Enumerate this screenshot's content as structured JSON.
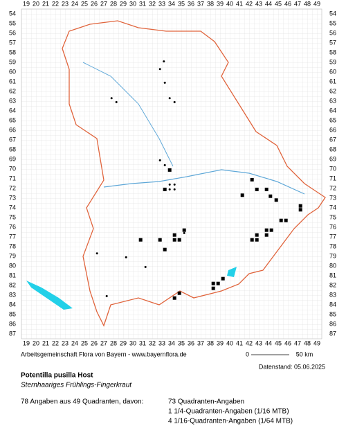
{
  "map": {
    "columns": [
      19,
      20,
      21,
      22,
      23,
      24,
      25,
      26,
      27,
      28,
      29,
      30,
      31,
      32,
      33,
      34,
      35,
      36,
      37,
      38,
      39,
      40,
      41,
      42,
      43,
      44,
      45,
      46,
      47,
      48,
      49
    ],
    "rows": [
      54,
      55,
      56,
      57,
      58,
      59,
      60,
      61,
      62,
      63,
      64,
      65,
      66,
      67,
      68,
      69,
      70,
      71,
      72,
      73,
      74,
      75,
      76,
      77,
      78,
      79,
      80,
      81,
      82,
      83,
      84,
      85,
      86,
      87
    ],
    "squares": [
      {
        "x": 33.8,
        "y": 70.1
      },
      {
        "x": 33.3,
        "y": 72.1
      },
      {
        "x": 42.3,
        "y": 71.1
      },
      {
        "x": 42.8,
        "y": 72.1
      },
      {
        "x": 43.8,
        "y": 72.1
      },
      {
        "x": 44.2,
        "y": 72.8
      },
      {
        "x": 44.8,
        "y": 73.2
      },
      {
        "x": 41.3,
        "y": 72.7
      },
      {
        "x": 47.3,
        "y": 73.8
      },
      {
        "x": 47.3,
        "y": 74.2
      },
      {
        "x": 45.3,
        "y": 75.3
      },
      {
        "x": 45.8,
        "y": 75.3
      },
      {
        "x": 42.8,
        "y": 76.8
      },
      {
        "x": 43.8,
        "y": 76.8
      },
      {
        "x": 44.3,
        "y": 76.3
      },
      {
        "x": 42.8,
        "y": 77.3
      },
      {
        "x": 42.3,
        "y": 77.3
      },
      {
        "x": 43.8,
        "y": 76.3
      },
      {
        "x": 35.3,
        "y": 76.3
      },
      {
        "x": 34.3,
        "y": 76.8
      },
      {
        "x": 34.8,
        "y": 77.3
      },
      {
        "x": 34.3,
        "y": 77.3
      },
      {
        "x": 32.8,
        "y": 77.3
      },
      {
        "x": 30.8,
        "y": 77.3
      },
      {
        "x": 33.3,
        "y": 78.3
      },
      {
        "x": 39.3,
        "y": 81.3
      },
      {
        "x": 38.8,
        "y": 81.8
      },
      {
        "x": 38.3,
        "y": 81.8
      },
      {
        "x": 38.3,
        "y": 82.3
      },
      {
        "x": 34.8,
        "y": 82.8
      },
      {
        "x": 34.3,
        "y": 83.3
      }
    ],
    "dots": [
      {
        "x": 33.2,
        "y": 58.9
      },
      {
        "x": 32.8,
        "y": 59.7
      },
      {
        "x": 33.3,
        "y": 61.1
      },
      {
        "x": 27.8,
        "y": 62.7
      },
      {
        "x": 28.3,
        "y": 63.1
      },
      {
        "x": 33.8,
        "y": 62.7
      },
      {
        "x": 34.3,
        "y": 63.1
      },
      {
        "x": 32.8,
        "y": 69.1
      },
      {
        "x": 33.3,
        "y": 69.6
      },
      {
        "x": 33.8,
        "y": 71.6
      },
      {
        "x": 34.3,
        "y": 71.6
      },
      {
        "x": 33.8,
        "y": 72.1
      },
      {
        "x": 34.3,
        "y": 72.1
      },
      {
        "x": 35.3,
        "y": 76.6
      },
      {
        "x": 26.3,
        "y": 78.7
      },
      {
        "x": 29.3,
        "y": 79.1
      },
      {
        "x": 31.3,
        "y": 80.1
      },
      {
        "x": 27.3,
        "y": 83.1
      }
    ],
    "credit": "Arbeitsgemeinschaft Flora von Bayern - www.bayernflora.de",
    "scale_start": "0",
    "scale_end": "50 km",
    "date": "Datenstand: 05.06.2025"
  },
  "species": {
    "name": "Potentilla pusilla Host",
    "german_name": "Sternhaariges Frühlings-Fingerkraut"
  },
  "stats": {
    "summary": "78 Angaben aus 49 Quadranten, davon:",
    "details": [
      "73 Quadranten-Angaben",
      "1 1/4-Quadranten-Angaben (1/16 MTB)",
      "4 1/16-Quadranten-Angaben (1/64 MTB)"
    ]
  }
}
